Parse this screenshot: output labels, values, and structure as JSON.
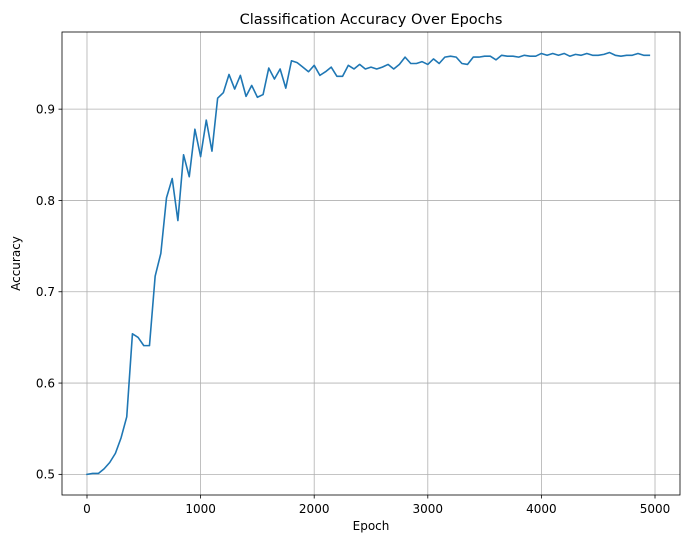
{
  "chart_data": {
    "type": "line",
    "title": "Classification Accuracy Over Epochs",
    "xlabel": "Epoch",
    "ylabel": "Accuracy",
    "xlim": [
      -220,
      5220
    ],
    "ylim": [
      0.4774,
      0.9845
    ],
    "xticks": [
      0,
      1000,
      2000,
      3000,
      4000,
      5000
    ],
    "yticks": [
      0.5,
      0.6,
      0.7,
      0.8,
      0.9
    ],
    "xtick_labels": [
      "0",
      "1000",
      "2000",
      "3000",
      "4000",
      "5000"
    ],
    "ytick_labels": [
      "0.5",
      "0.6",
      "0.7",
      "0.8",
      "0.9"
    ],
    "grid": true,
    "line_color": "#1f77b4",
    "series": [
      {
        "x": [
          0,
          50,
          100,
          150,
          200,
          250,
          300,
          350,
          400,
          450,
          500,
          550,
          600,
          650,
          700,
          750,
          800,
          850,
          900,
          950,
          1000,
          1050,
          1100,
          1150,
          1200,
          1250,
          1300,
          1350,
          1400,
          1450,
          1500,
          1550,
          1600,
          1650,
          1700,
          1750,
          1800,
          1850,
          1900,
          1950,
          2000,
          2050,
          2100,
          2150,
          2200,
          2250,
          2300,
          2350,
          2400,
          2450,
          2500,
          2550,
          2600,
          2650,
          2700,
          2750,
          2800,
          2850,
          2900,
          2950,
          3000,
          3050,
          3100,
          3150,
          3200,
          3250,
          3300,
          3350,
          3400,
          3450,
          3500,
          3550,
          3600,
          3650,
          3700,
          3750,
          3800,
          3850,
          3900,
          3950,
          4000,
          4050,
          4100,
          4150,
          4200,
          4250,
          4300,
          4350,
          4400,
          4450,
          4500,
          4550,
          4600,
          4650,
          4700,
          4750,
          4800,
          4850,
          4900,
          4950
        ],
        "values": [
          0.5,
          0.501,
          0.501,
          0.506,
          0.513,
          0.523,
          0.54,
          0.563,
          0.654,
          0.65,
          0.641,
          0.641,
          0.717,
          0.742,
          0.803,
          0.824,
          0.778,
          0.85,
          0.826,
          0.878,
          0.848,
          0.888,
          0.854,
          0.912,
          0.918,
          0.938,
          0.922,
          0.937,
          0.914,
          0.926,
          0.913,
          0.916,
          0.945,
          0.933,
          0.944,
          0.923,
          0.953,
          0.951,
          0.946,
          0.941,
          0.948,
          0.937,
          0.941,
          0.946,
          0.936,
          0.936,
          0.948,
          0.944,
          0.949,
          0.944,
          0.946,
          0.944,
          0.946,
          0.949,
          0.944,
          0.949,
          0.957,
          0.95,
          0.95,
          0.952,
          0.949,
          0.955,
          0.95,
          0.957,
          0.958,
          0.957,
          0.95,
          0.949,
          0.957,
          0.957,
          0.958,
          0.958,
          0.954,
          0.959,
          0.958,
          0.958,
          0.957,
          0.959,
          0.958,
          0.958,
          0.961,
          0.959,
          0.961,
          0.959,
          0.961,
          0.958,
          0.96,
          0.959,
          0.961,
          0.959,
          0.959,
          0.96,
          0.962,
          0.959,
          0.958,
          0.959,
          0.959,
          0.961,
          0.959,
          0.959
        ]
      }
    ]
  }
}
